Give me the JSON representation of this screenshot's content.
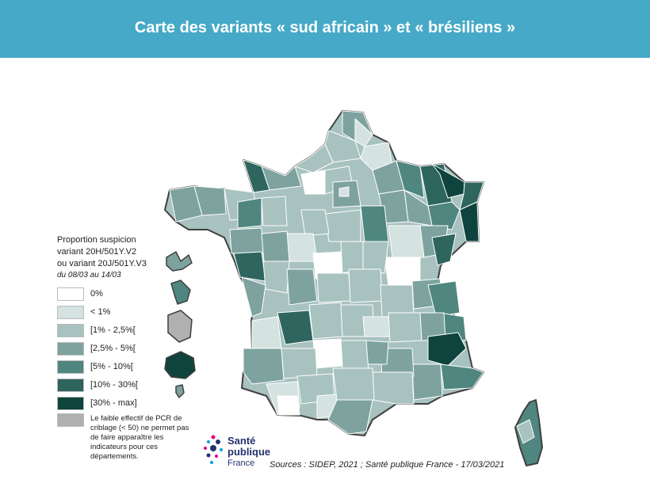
{
  "header": {
    "title": "Carte des variants « sud africain » et « brésiliens »",
    "background": "#45a9c7"
  },
  "legend": {
    "title_lines": [
      "Proportion suspicion",
      "variant 20H/501Y.V2",
      "ou variant 20J/501Y.V3"
    ],
    "period": "du 08/03 au 14/03",
    "classes": [
      {
        "label": "0%",
        "color": "#ffffff"
      },
      {
        "label": "< 1%",
        "color": "#d4e2e0"
      },
      {
        "label": "[1% - 2,5%[",
        "color": "#a8c2bf"
      },
      {
        "label": "[2,5% - 5%[",
        "color": "#7ea39f"
      },
      {
        "label": "[5% - 10%[",
        "color": "#4f8680"
      },
      {
        "label": "[10% - 30%[",
        "color": "#2e655f"
      },
      {
        "label": "[30% - max]",
        "color": "#0f433d"
      }
    ],
    "insufficient": {
      "color": "#b0b0b0",
      "note": "Le faible effectif de PCR de criblage (< 50) ne permet pas de faire apparaître les indicateurs pour ces départements."
    }
  },
  "logo": {
    "line1": "Santé",
    "line2": "publique",
    "line3": "France"
  },
  "source": "Sources : SIDEP, 2021 ; Santé publique France - 17/03/2021"
}
